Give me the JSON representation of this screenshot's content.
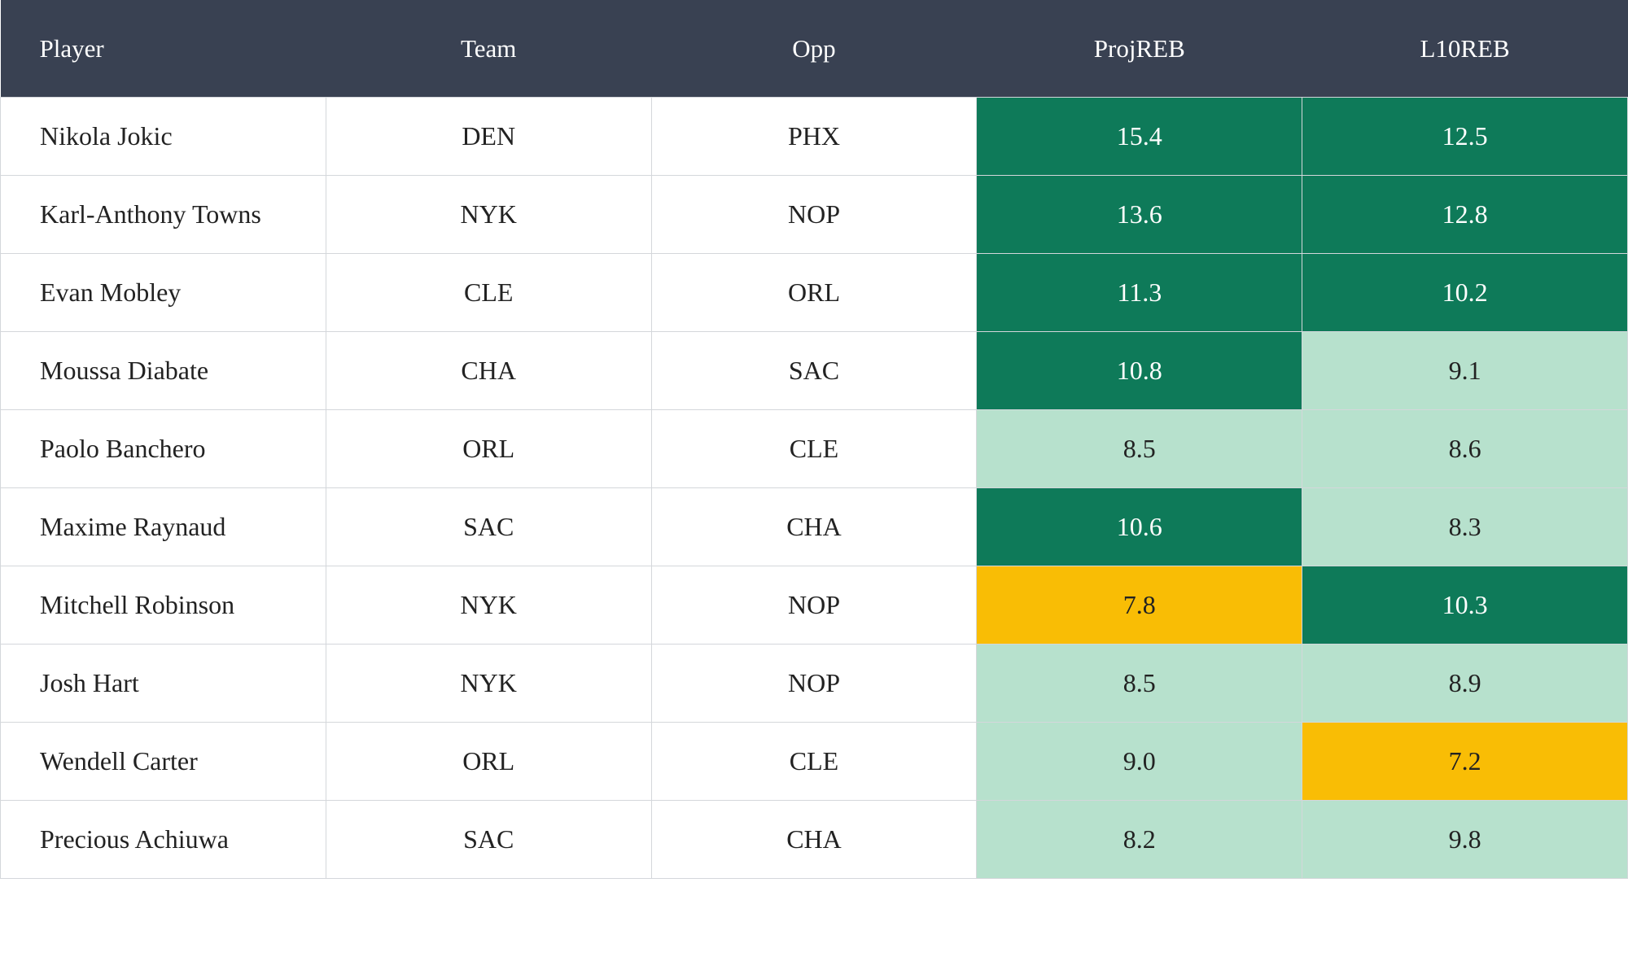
{
  "table": {
    "header": [
      "Player",
      "Team",
      "Opp",
      "ProjREB",
      "L10REB"
    ],
    "rows": [
      [
        "Nikola Jokic",
        "DEN",
        "PHX",
        "15.4",
        "12.5"
      ],
      [
        "Karl-Anthony Towns",
        "NYK",
        "NOP",
        "13.6",
        "12.8"
      ],
      [
        "Evan Mobley",
        "CLE",
        "ORL",
        "11.3",
        "10.2"
      ],
      [
        "Moussa Diabate",
        "CHA",
        "SAC",
        "10.8",
        "9.1"
      ],
      [
        "Paolo Banchero",
        "ORL",
        "CLE",
        "8.5",
        "8.6"
      ],
      [
        "Maxime Raynaud",
        "SAC",
        "CHA",
        "10.6",
        "8.3"
      ],
      [
        "Mitchell Robinson",
        "NYK",
        "NOP",
        "7.8",
        "10.3"
      ],
      [
        "Josh Hart",
        "NYK",
        "NOP",
        "8.5",
        "8.9"
      ],
      [
        "Wendell Carter",
        "ORL",
        "CLE",
        "9.0",
        "7.2"
      ],
      [
        "Precious Achiuwa",
        "SAC",
        "CHA",
        "8.2",
        "9.8"
      ]
    ],
    "fills": [
      [
        "#0e7a59",
        "#0e7a59"
      ],
      [
        "#0e7a59",
        "#0e7a59"
      ],
      [
        "#0e7a59",
        "#0e7a59"
      ],
      [
        "#0e7a59",
        "#b7e1cd"
      ],
      [
        "#b7e1cd",
        "#b7e1cd"
      ],
      [
        "#0e7a59",
        "#b7e1cd"
      ],
      [
        "#f9bd05",
        "#0e7a59"
      ],
      [
        "#b7e1cd",
        "#b7e1cd"
      ],
      [
        "#b7e1cd",
        "#f9bd05"
      ],
      [
        "#b7e1cd",
        "#b7e1cd"
      ]
    ]
  }
}
